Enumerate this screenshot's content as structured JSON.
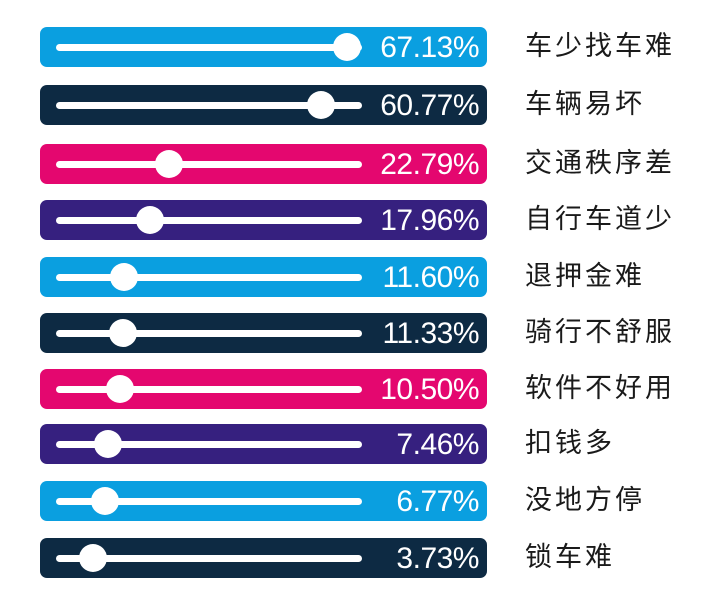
{
  "chart_data": {
    "type": "bar",
    "orientation": "horizontal",
    "style": "slider-bars",
    "title": "",
    "xlabel": "",
    "ylabel": "",
    "categories": [
      "车少找车难",
      "车辆易坏",
      "交通秩序差",
      "自行车道少",
      "退押金难",
      "骑行不舒服",
      "软件不好用",
      "扣钱多",
      "没地方停",
      "锁车难"
    ],
    "values": [
      67.13,
      60.77,
      22.79,
      17.96,
      11.6,
      11.33,
      10.5,
      7.46,
      6.77,
      3.73
    ],
    "value_labels": [
      "67.13%",
      "60.77%",
      "22.79%",
      "17.96%",
      "11.60%",
      "11.33%",
      "10.50%",
      "7.46%",
      "6.77%",
      "3.73%"
    ],
    "unit": "%",
    "xlim": [
      0,
      100
    ],
    "grid": false,
    "legend": null
  },
  "colors": {
    "light_blue": "#0a9fe0",
    "navy": "#0d2a43",
    "magenta": "#e4076f",
    "purple": "#36207f",
    "knob": "#ffffff",
    "label_text": "#1a1a1a"
  },
  "rows": [
    {
      "label": "车少找车难",
      "value": "67.13%",
      "pct": 67.13,
      "color": "#0a9fe0"
    },
    {
      "label": "车辆易坏",
      "value": "60.77%",
      "pct": 60.77,
      "color": "#0d2a43"
    },
    {
      "label": "交通秩序差",
      "value": "22.79%",
      "pct": 22.79,
      "color": "#e4076f"
    },
    {
      "label": "自行车道少",
      "value": "17.96%",
      "pct": 17.96,
      "color": "#36207f"
    },
    {
      "label": "退押金难",
      "value": "11.60%",
      "pct": 11.6,
      "color": "#0a9fe0"
    },
    {
      "label": "骑行不舒服",
      "value": "11.33%",
      "pct": 11.33,
      "color": "#0d2a43"
    },
    {
      "label": "软件不好用",
      "value": "10.50%",
      "pct": 10.5,
      "color": "#e4076f"
    },
    {
      "label": "扣钱多",
      "value": "7.46%",
      "pct": 7.46,
      "color": "#36207f"
    },
    {
      "label": "没地方停",
      "value": "6.77%",
      "pct": 6.77,
      "color": "#0a9fe0"
    },
    {
      "label": "锁车难",
      "value": "3.73%",
      "pct": 3.73,
      "color": "#0d2a43"
    }
  ]
}
